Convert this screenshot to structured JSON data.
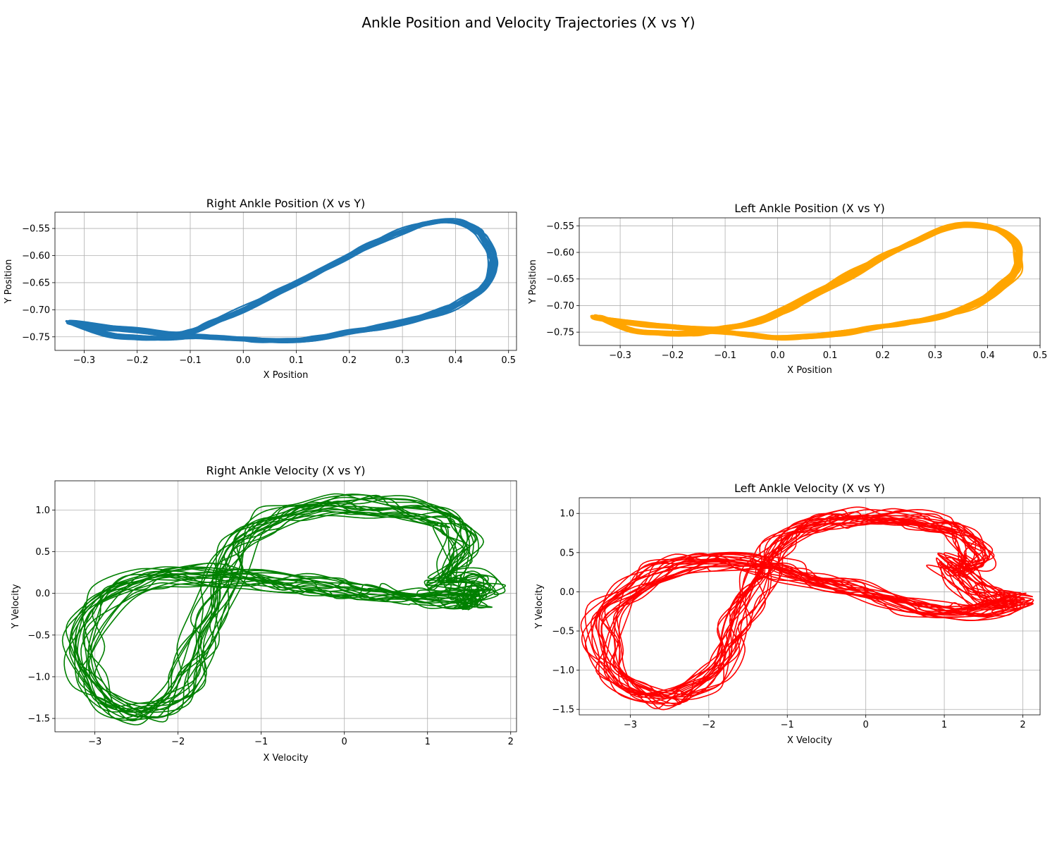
{
  "figure": {
    "title": "Ankle Position and Velocity Trajectories (X vs Y)"
  },
  "chart_data": [
    {
      "type": "line",
      "title": "Right Ankle Position (X vs Y)",
      "xlabel": "X Position",
      "ylabel": "Y Position",
      "xlim": [
        -0.355,
        0.515
      ],
      "ylim": [
        -0.775,
        -0.52
      ],
      "xticks": [
        -0.3,
        -0.2,
        -0.1,
        0.0,
        0.1,
        0.2,
        0.3,
        0.4,
        0.5
      ],
      "xtick_labels": [
        "−0.3",
        "−0.2",
        "−0.1",
        "0.0",
        "0.1",
        "0.2",
        "0.3",
        "0.4",
        "0.5"
      ],
      "yticks": [
        -0.75,
        -0.7,
        -0.65,
        -0.6,
        -0.55
      ],
      "ytick_labels": [
        "−0.75",
        "−0.70",
        "−0.65",
        "−0.60",
        "−0.55"
      ],
      "grid": true,
      "color": "#1f77b4",
      "series": [
        {
          "cycles": 22,
          "x": [
            -0.32,
            -0.26,
            -0.2,
            -0.14,
            -0.1,
            -0.04,
            0.02,
            0.08,
            0.14,
            0.2,
            0.26,
            0.32,
            0.38,
            0.42,
            0.455,
            0.47,
            0.47,
            0.455,
            0.44,
            0.4,
            0.35,
            0.3,
            0.24,
            0.18,
            0.12,
            0.06,
            0.0,
            -0.06,
            -0.1,
            -0.14,
            -0.2,
            -0.26,
            -0.32
          ],
          "y": [
            -0.725,
            -0.745,
            -0.752,
            -0.753,
            -0.75,
            -0.752,
            -0.755,
            -0.757,
            -0.752,
            -0.742,
            -0.732,
            -0.72,
            -0.7,
            -0.68,
            -0.655,
            -0.625,
            -0.6,
            -0.572,
            -0.555,
            -0.537,
            -0.54,
            -0.555,
            -0.58,
            -0.61,
            -0.64,
            -0.67,
            -0.7,
            -0.725,
            -0.74,
            -0.745,
            -0.738,
            -0.733,
            -0.725
          ]
        }
      ]
    },
    {
      "type": "line",
      "title": "Left Ankle Position (X vs Y)",
      "xlabel": "X Position",
      "ylabel": "Y Position",
      "xlim": [
        -0.378,
        0.5
      ],
      "ylim": [
        -0.775,
        -0.535
      ],
      "xticks": [
        -0.3,
        -0.2,
        -0.1,
        0.0,
        0.1,
        0.2,
        0.3,
        0.4,
        0.5
      ],
      "xtick_labels": [
        "−0.3",
        "−0.2",
        "−0.1",
        "0.0",
        "0.1",
        "0.2",
        "0.3",
        "0.4",
        "0.5"
      ],
      "yticks": [
        -0.75,
        -0.7,
        -0.65,
        -0.6,
        -0.55
      ],
      "ytick_labels": [
        "−0.75",
        "−0.70",
        "−0.65",
        "−0.60",
        "−0.55"
      ],
      "grid": true,
      "color": "#ffa500",
      "series": [
        {
          "cycles": 24,
          "x": [
            -0.34,
            -0.28,
            -0.22,
            -0.16,
            -0.12,
            -0.06,
            0.0,
            0.06,
            0.12,
            0.18,
            0.24,
            0.3,
            0.36,
            0.4,
            0.43,
            0.455,
            0.458,
            0.45,
            0.42,
            0.37,
            0.32,
            0.26,
            0.2,
            0.14,
            0.08,
            0.02,
            -0.04,
            -0.1,
            -0.14,
            -0.2,
            -0.26,
            -0.34
          ],
          "y": [
            -0.723,
            -0.745,
            -0.752,
            -0.752,
            -0.748,
            -0.755,
            -0.76,
            -0.758,
            -0.752,
            -0.742,
            -0.733,
            -0.722,
            -0.705,
            -0.685,
            -0.66,
            -0.635,
            -0.605,
            -0.58,
            -0.558,
            -0.548,
            -0.555,
            -0.58,
            -0.61,
            -0.642,
            -0.675,
            -0.705,
            -0.73,
            -0.742,
            -0.745,
            -0.74,
            -0.735,
            -0.723
          ]
        }
      ]
    },
    {
      "type": "line",
      "title": "Right Ankle Velocity (X vs Y)",
      "xlabel": "X Velocity",
      "ylabel": "Y Velocity",
      "xlim": [
        -3.48,
        2.07
      ],
      "ylim": [
        -1.66,
        1.35
      ],
      "xticks": [
        -3,
        -2,
        -1,
        0,
        1,
        2
      ],
      "xtick_labels": [
        "−3",
        "−2",
        "−1",
        "0",
        "1",
        "2"
      ],
      "yticks": [
        -1.5,
        -1.0,
        -0.5,
        0.0,
        0.5,
        1.0
      ],
      "ytick_labels": [
        "−1.5",
        "−1.0",
        "−0.5",
        "0.0",
        "0.5",
        "1.0"
      ],
      "grid": true,
      "color": "#008000",
      "series": [
        {
          "cycles": 20,
          "x": [
            1.5,
            1.2,
            0.9,
            0.6,
            0.3,
            0.0,
            -0.4,
            -0.8,
            -1.2,
            -1.6,
            -2.0,
            -2.4,
            -2.8,
            -3.05,
            -3.15,
            -3.05,
            -2.8,
            -2.45,
            -2.1,
            -1.9,
            -1.75,
            -1.6,
            -1.45,
            -1.3,
            -1.1,
            -0.8,
            -0.4,
            0.0,
            0.4,
            0.8,
            1.1,
            1.3,
            1.4,
            1.3,
            1.15,
            1.25,
            1.5,
            1.7,
            1.55,
            1.5
          ],
          "y": [
            -0.05,
            -0.05,
            -0.04,
            -0.02,
            0.02,
            0.05,
            0.1,
            0.15,
            0.19,
            0.22,
            0.22,
            0.15,
            0.0,
            -0.3,
            -0.7,
            -1.1,
            -1.35,
            -1.45,
            -1.3,
            -1.0,
            -0.6,
            -0.2,
            0.2,
            0.5,
            0.75,
            0.92,
            1.02,
            1.07,
            1.05,
            1.0,
            0.93,
            0.82,
            0.6,
            0.35,
            0.15,
            0.15,
            0.18,
            0.05,
            -0.1,
            -0.05
          ]
        }
      ]
    },
    {
      "type": "line",
      "title": "Left Ankle Velocity (X vs Y)",
      "xlabel": "X Velocity",
      "ylabel": "Y Velocity",
      "xlim": [
        -3.65,
        2.22
      ],
      "ylim": [
        -1.57,
        1.2
      ],
      "xticks": [
        -3,
        -2,
        -1,
        0,
        1,
        2
      ],
      "xtick_labels": [
        "−3",
        "−2",
        "−1",
        "0",
        "1",
        "2"
      ],
      "yticks": [
        -1.5,
        -1.0,
        -0.5,
        0.0,
        0.5,
        1.0
      ],
      "ytick_labels": [
        "−1.5",
        "−1.0",
        "−0.5",
        "0.0",
        "0.5",
        "1.0"
      ],
      "grid": true,
      "color": "#ff0000",
      "series": [
        {
          "cycles": 22,
          "x": [
            1.9,
            1.6,
            1.3,
            1.0,
            0.6,
            0.2,
            -0.2,
            -0.6,
            -1.0,
            -1.4,
            -1.8,
            -2.2,
            -2.6,
            -3.0,
            -3.3,
            -3.35,
            -3.2,
            -2.9,
            -2.6,
            -2.3,
            -2.0,
            -1.8,
            -1.65,
            -1.5,
            -1.35,
            -1.15,
            -0.9,
            -0.6,
            -0.3,
            0.0,
            0.4,
            0.8,
            1.1,
            1.3,
            1.4,
            1.25,
            1.05,
            1.3,
            1.5,
            1.7,
            1.9
          ],
          "y": [
            -0.12,
            -0.22,
            -0.26,
            -0.24,
            -0.18,
            -0.08,
            0.04,
            0.15,
            0.27,
            0.36,
            0.4,
            0.38,
            0.25,
            0.05,
            -0.3,
            -0.7,
            -1.05,
            -1.3,
            -1.38,
            -1.3,
            -1.1,
            -0.8,
            -0.45,
            -0.1,
            0.25,
            0.55,
            0.75,
            0.88,
            0.93,
            0.95,
            0.93,
            0.88,
            0.8,
            0.65,
            0.45,
            0.3,
            0.4,
            0.15,
            -0.05,
            -0.1,
            -0.12
          ]
        }
      ]
    }
  ]
}
